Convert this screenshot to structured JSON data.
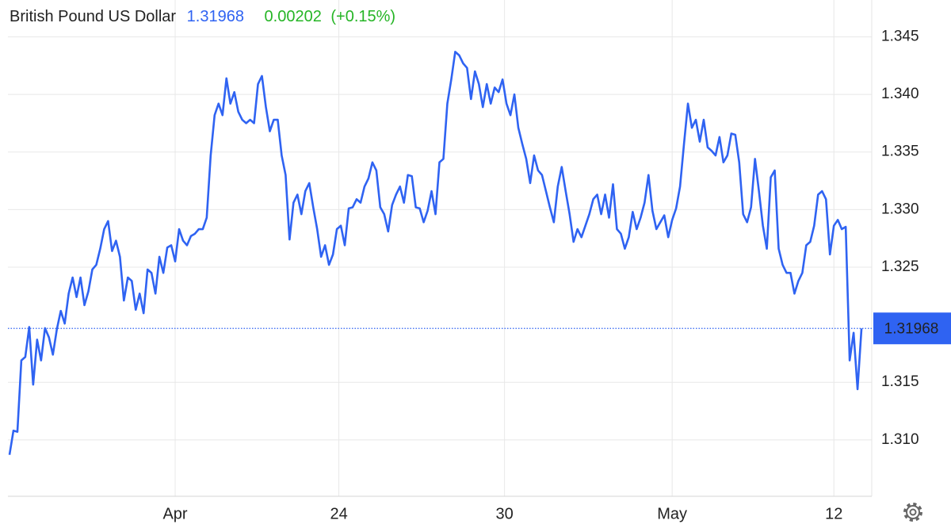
{
  "chart_data": {
    "type": "line",
    "title": "British Pound US Dollar",
    "last_price": 1.31968,
    "change": 0.00202,
    "change_label": "(+0.15%)",
    "xlim": [
      -0.4,
      218.6
    ],
    "xticks": [
      {
        "value": 42,
        "label": "Apr"
      },
      {
        "value": 83.5,
        "label": "24"
      },
      {
        "value": 125.5,
        "label": "30"
      },
      {
        "value": 168,
        "label": "May"
      },
      {
        "value": 209,
        "label": "12"
      }
    ],
    "ylim": [
      1.3051,
      1.3482
    ],
    "yticks": [
      {
        "value": 1.31,
        "label": "1.310"
      },
      1.315,
      1.325,
      {
        "value": 1.33,
        "label": "1.330"
      },
      1.335,
      {
        "value": 1.34,
        "label": "1.340"
      },
      1.345
    ],
    "grid": true,
    "series": [
      {
        "color": "#2f63f2",
        "values": [
          1.3087,
          1.3108,
          1.3107,
          1.3169,
          1.3172,
          1.3198,
          1.3148,
          1.3187,
          1.3169,
          1.3197,
          1.3189,
          1.3174,
          1.3196,
          1.3212,
          1.3201,
          1.3227,
          1.3241,
          1.3224,
          1.3241,
          1.3217,
          1.3229,
          1.3248,
          1.3252,
          1.3266,
          1.3283,
          1.329,
          1.3264,
          1.3273,
          1.3259,
          1.3221,
          1.3241,
          1.3238,
          1.3213,
          1.3227,
          1.321,
          1.3248,
          1.3245,
          1.3227,
          1.3259,
          1.3245,
          1.3267,
          1.3269,
          1.3255,
          1.3283,
          1.3273,
          1.3269,
          1.3277,
          1.3279,
          1.3283,
          1.3283,
          1.3293,
          1.3347,
          1.3382,
          1.3392,
          1.3382,
          1.3414,
          1.3392,
          1.3402,
          1.3385,
          1.3378,
          1.3375,
          1.3378,
          1.3375,
          1.3409,
          1.3416,
          1.3389,
          1.3368,
          1.3378,
          1.3378,
          1.3347,
          1.333,
          1.3274,
          1.3306,
          1.3313,
          1.3296,
          1.3316,
          1.3323,
          1.3302,
          1.3283,
          1.3259,
          1.3269,
          1.3252,
          1.3261,
          1.3283,
          1.3286,
          1.3269,
          1.3301,
          1.3302,
          1.3309,
          1.3306,
          1.332,
          1.3327,
          1.3341,
          1.3334,
          1.3302,
          1.3296,
          1.3281,
          1.3304,
          1.3313,
          1.332,
          1.3306,
          1.333,
          1.3329,
          1.3302,
          1.3301,
          1.3289,
          1.3299,
          1.3316,
          1.3296,
          1.3341,
          1.3344,
          1.3392,
          1.3413,
          1.3437,
          1.3434,
          1.3427,
          1.3423,
          1.3396,
          1.342,
          1.3409,
          1.3389,
          1.3409,
          1.3392,
          1.3406,
          1.3402,
          1.3413,
          1.3392,
          1.3382,
          1.34,
          1.3371,
          1.3357,
          1.3344,
          1.3323,
          1.3347,
          1.3334,
          1.333,
          1.3316,
          1.3302,
          1.3289,
          1.332,
          1.3337,
          1.3316,
          1.3296,
          1.3272,
          1.3283,
          1.3276,
          1.3286,
          1.3296,
          1.3309,
          1.3313,
          1.3296,
          1.3313,
          1.3293,
          1.3322,
          1.3283,
          1.3279,
          1.3266,
          1.3276,
          1.3298,
          1.3283,
          1.3293,
          1.3306,
          1.333,
          1.3299,
          1.3283,
          1.3289,
          1.3295,
          1.3276,
          1.3291,
          1.3301,
          1.332,
          1.3357,
          1.3392,
          1.3371,
          1.3378,
          1.3359,
          1.3378,
          1.3354,
          1.3351,
          1.3347,
          1.3363,
          1.3341,
          1.3347,
          1.3366,
          1.3365,
          1.3341,
          1.3296,
          1.3289,
          1.3302,
          1.3344,
          1.3316,
          1.3286,
          1.3266,
          1.3328,
          1.3334,
          1.3266,
          1.3252,
          1.3245,
          1.3245,
          1.3227,
          1.3238,
          1.3245,
          1.3269,
          1.3272,
          1.3286,
          1.3313,
          1.3316,
          1.3309,
          1.3261,
          1.3286,
          1.3291,
          1.3283,
          1.3285,
          1.3169,
          1.3193,
          1.3144,
          1.31968
        ]
      }
    ]
  }
}
